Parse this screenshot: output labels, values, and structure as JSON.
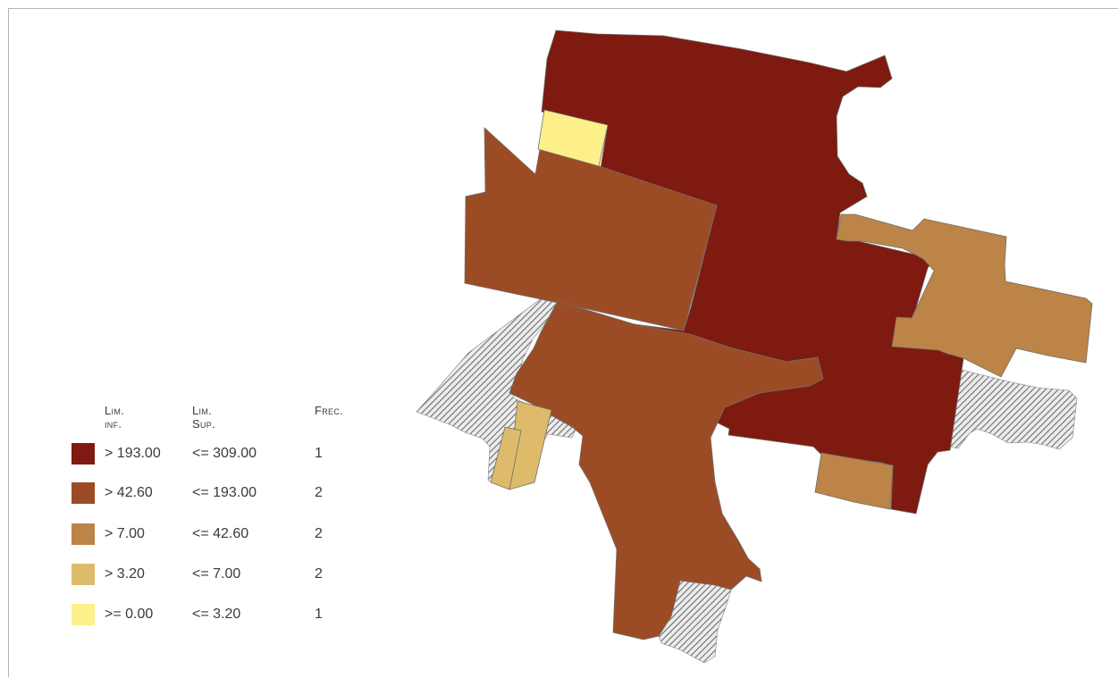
{
  "legend": {
    "headers": {
      "lim_inf": "Lim. inf.",
      "lim_sup": "Lim. Sup.",
      "frec": "Frec."
    },
    "classes": [
      {
        "color": "#7e1a10",
        "lim_inf": "> 193.00",
        "lim_sup": "<= 309.00",
        "frec": "1"
      },
      {
        "color": "#9c4c24",
        "lim_inf": "> 42.60",
        "lim_sup": "<= 193.00",
        "frec": "2"
      },
      {
        "color": "#bd8447",
        "lim_inf": "> 7.00",
        "lim_sup": "<= 42.60",
        "frec": "2"
      },
      {
        "color": "#ddbb6b",
        "lim_inf": "> 3.20",
        "lim_sup": "<= 7.00",
        "frec": "2"
      },
      {
        "color": "#fdf08b",
        "lim_inf": ">= 0.00",
        "lim_sup": "<= 3.20",
        "frec": "1"
      }
    ]
  },
  "map": {
    "nodata_pattern": "diagonal-hatch",
    "nodata_color": "#9a9a9a"
  }
}
